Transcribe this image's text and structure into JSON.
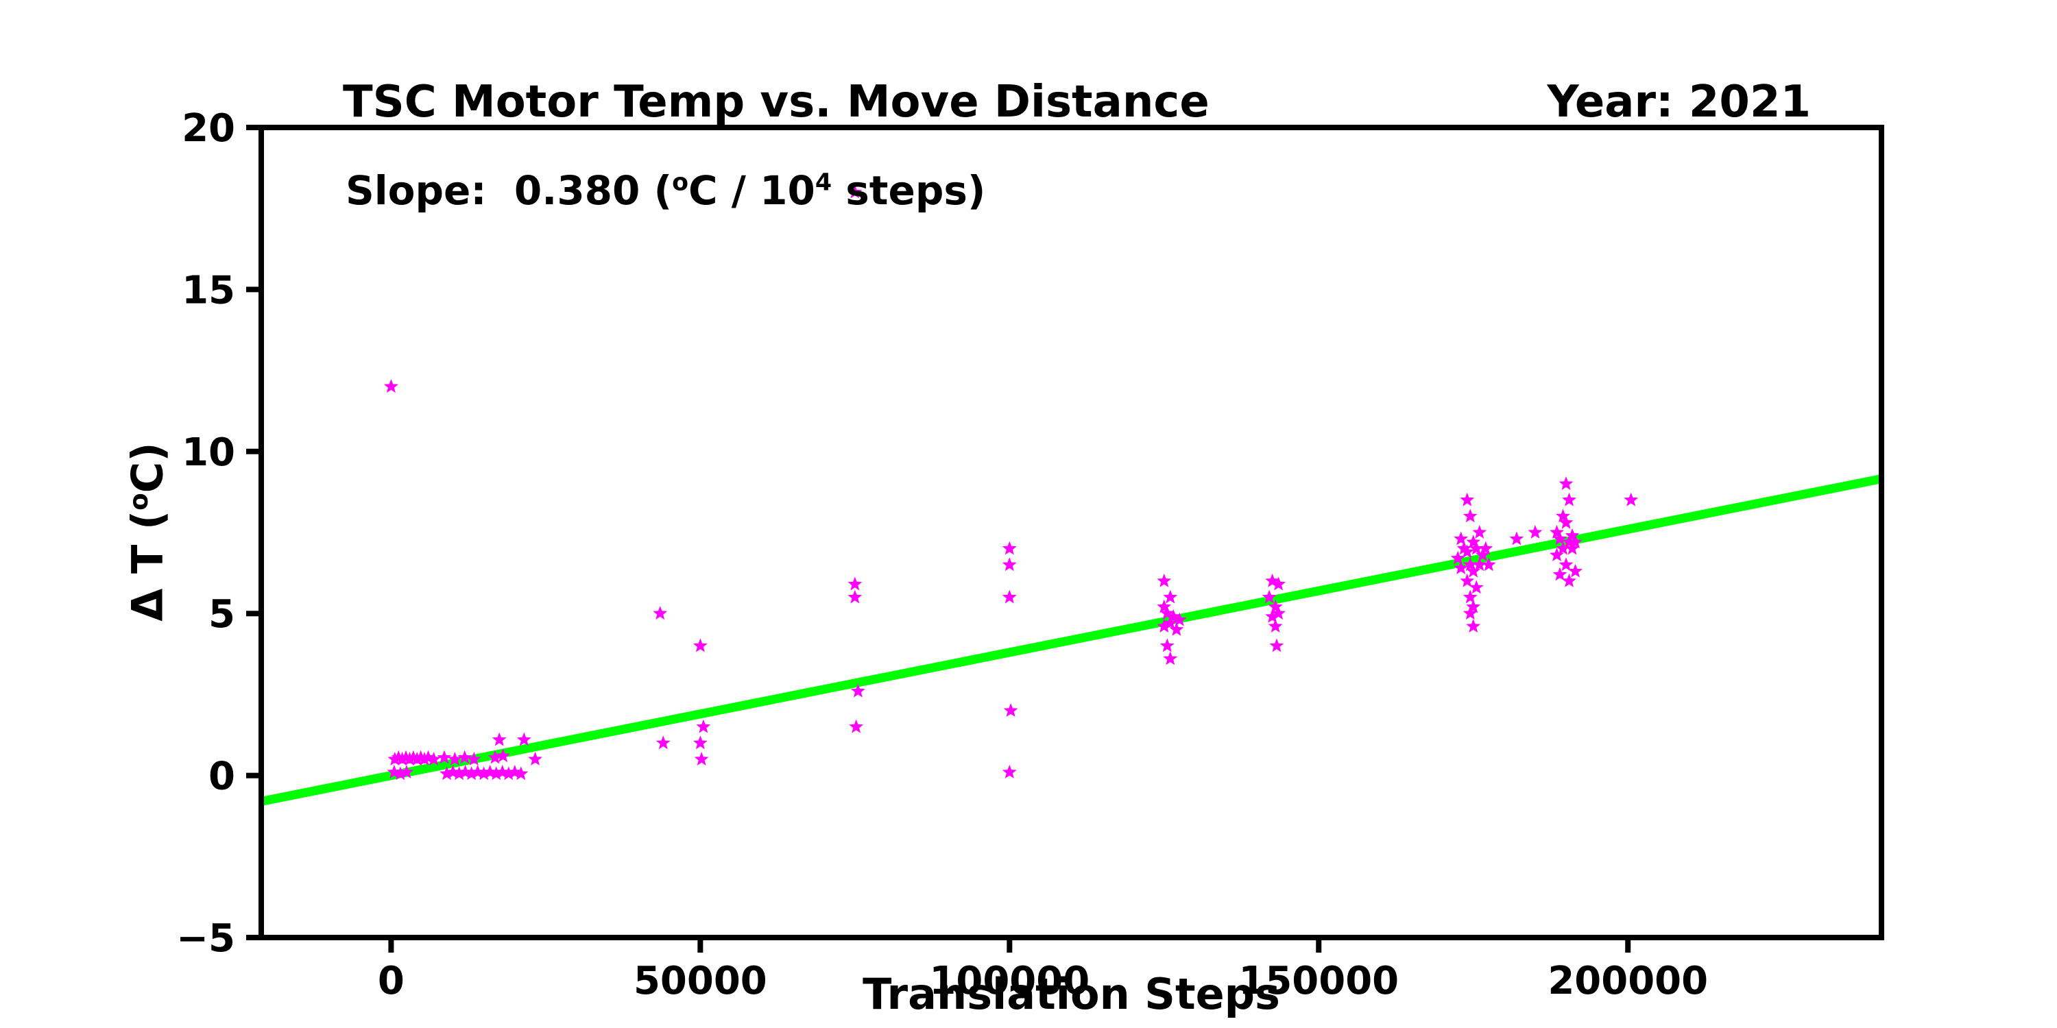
{
  "figure": {
    "title": "TSC Motor Temp vs. Move Distance",
    "year_label": "Year: 2021",
    "xlabel": "Translation Steps",
    "ylabel": {
      "part1": "Δ T (",
      "sup": "o",
      "part2": "C)"
    },
    "annotation": {
      "part1": "Slope:  0.380 (",
      "sup1": "o",
      "part2": "C / 10",
      "sup2": "4",
      "part3": " steps)"
    }
  },
  "chart_data": {
    "type": "scatter",
    "title": "TSC Motor Temp vs. Move Distance",
    "subtitle": "Year: 2021",
    "annotation": "Slope:  0.380 (°C / 10⁴ steps)",
    "xlabel": "Translation Steps",
    "ylabel": "Δ T (°C)",
    "xlim": [
      -21000,
      241000
    ],
    "ylim": [
      -5,
      20
    ],
    "xticks": [
      0,
      50000,
      100000,
      150000,
      200000
    ],
    "yticks": [
      -5,
      0,
      5,
      10,
      15,
      20
    ],
    "grid": false,
    "legend": "none",
    "marker": {
      "shape": "star",
      "color": "#FF00FF"
    },
    "fit_line": {
      "color": "#00FF00",
      "slope_per_10k_steps": 0.38,
      "intercept": 0.0
    },
    "points": [
      [
        0,
        12
      ],
      [
        75000,
        18
      ],
      [
        600,
        0.5
      ],
      [
        1200,
        0.55
      ],
      [
        1800,
        0.5
      ],
      [
        2400,
        0.55
      ],
      [
        3000,
        0.5
      ],
      [
        3600,
        0.55
      ],
      [
        4200,
        0.5
      ],
      [
        4800,
        0.55
      ],
      [
        5400,
        0.5
      ],
      [
        6000,
        0.55
      ],
      [
        6900,
        0.5
      ],
      [
        8600,
        0.55
      ],
      [
        10300,
        0.5
      ],
      [
        11900,
        0.55
      ],
      [
        13400,
        0.5
      ],
      [
        500,
        0.1
      ],
      [
        1500,
        0.05
      ],
      [
        2500,
        0.1
      ],
      [
        9000,
        0.05
      ],
      [
        10000,
        0.1
      ],
      [
        11000,
        0.05
      ],
      [
        12000,
        0.1
      ],
      [
        13000,
        0.05
      ],
      [
        14000,
        0.1
      ],
      [
        15000,
        0.05
      ],
      [
        16000,
        0.1
      ],
      [
        17000,
        0.05
      ],
      [
        18000,
        0.1
      ],
      [
        19000,
        0.05
      ],
      [
        20000,
        0.1
      ],
      [
        21000,
        0.05
      ],
      [
        16800,
        0.55
      ],
      [
        18100,
        0.6
      ],
      [
        23300,
        0.5
      ],
      [
        17500,
        1.1
      ],
      [
        21500,
        1.1
      ],
      [
        43500,
        5.0
      ],
      [
        44000,
        1.0
      ],
      [
        50000,
        4.0
      ],
      [
        50500,
        1.5
      ],
      [
        50000,
        1.0
      ],
      [
        50200,
        0.5
      ],
      [
        75000,
        5.9
      ],
      [
        75000,
        5.5
      ],
      [
        75500,
        2.6
      ],
      [
        75200,
        1.5
      ],
      [
        100000,
        7.0
      ],
      [
        100000,
        6.5
      ],
      [
        100000,
        5.5
      ],
      [
        100200,
        2.0
      ],
      [
        100000,
        0.1
      ],
      [
        125000,
        6.0
      ],
      [
        126000,
        5.5
      ],
      [
        125000,
        5.2
      ],
      [
        125500,
        5.0
      ],
      [
        126500,
        4.9
      ],
      [
        127500,
        4.8
      ],
      [
        126000,
        4.7
      ],
      [
        125000,
        4.6
      ],
      [
        127000,
        4.5
      ],
      [
        125500,
        4.0
      ],
      [
        126000,
        3.6
      ],
      [
        142500,
        6.0
      ],
      [
        143500,
        5.9
      ],
      [
        142000,
        5.5
      ],
      [
        143000,
        5.2
      ],
      [
        143500,
        5.0
      ],
      [
        142500,
        4.9
      ],
      [
        143000,
        4.6
      ],
      [
        143200,
        4.0
      ],
      [
        174000,
        8.5
      ],
      [
        174500,
        8.0
      ],
      [
        176000,
        7.5
      ],
      [
        173000,
        7.3
      ],
      [
        175000,
        7.2
      ],
      [
        173500,
        7.0
      ],
      [
        175500,
        7.0
      ],
      [
        177000,
        7.0
      ],
      [
        174000,
        6.9
      ],
      [
        176500,
        6.8
      ],
      [
        172500,
        6.7
      ],
      [
        174500,
        6.5
      ],
      [
        176000,
        6.5
      ],
      [
        177500,
        6.5
      ],
      [
        173000,
        6.4
      ],
      [
        175000,
        6.3
      ],
      [
        174000,
        6.0
      ],
      [
        175500,
        5.8
      ],
      [
        174500,
        5.5
      ],
      [
        175000,
        5.2
      ],
      [
        174500,
        5.0
      ],
      [
        175000,
        4.6
      ],
      [
        182000,
        7.3
      ],
      [
        185000,
        7.5
      ],
      [
        190000,
        9.0
      ],
      [
        190500,
        8.5
      ],
      [
        189500,
        8.0
      ],
      [
        190000,
        7.8
      ],
      [
        188500,
        7.5
      ],
      [
        191000,
        7.4
      ],
      [
        189000,
        7.3
      ],
      [
        190500,
        7.2
      ],
      [
        191500,
        7.2
      ],
      [
        189500,
        7.0
      ],
      [
        191000,
        7.0
      ],
      [
        188500,
        6.8
      ],
      [
        190000,
        6.5
      ],
      [
        191500,
        6.3
      ],
      [
        189000,
        6.2
      ],
      [
        190500,
        6.0
      ],
      [
        200500,
        8.5
      ]
    ]
  }
}
